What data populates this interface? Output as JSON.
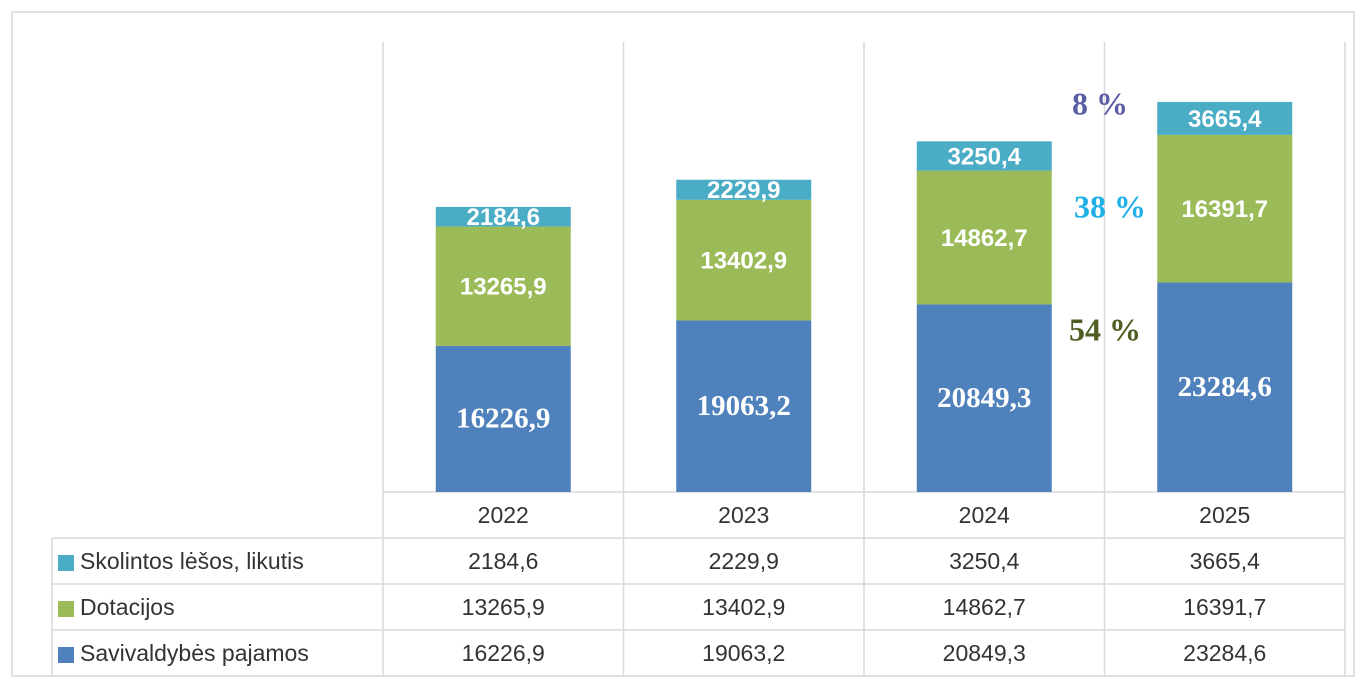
{
  "chart_data": {
    "type": "stacked_bar",
    "categories": [
      "2022",
      "2023",
      "2024",
      "2025"
    ],
    "series": [
      {
        "name": "Savivaldybės pajamos",
        "color": "#4f81bd",
        "values": [
          16226.9,
          19063.2,
          20849.3,
          23284.6
        ],
        "value_labels": [
          "16226,9",
          "19063,2",
          "20849,3",
          "23284,6"
        ]
      },
      {
        "name": "Dotacijos",
        "color": "#9bbb59",
        "values": [
          13265.9,
          13402.9,
          14862.7,
          16391.7
        ],
        "value_labels": [
          "13265,9",
          "13402,9",
          "14862,7",
          "16391,7"
        ]
      },
      {
        "name": "Skolintos lėšos, likutis",
        "color": "#4bacc6",
        "values": [
          2184.6,
          2229.9,
          3250.4,
          3665.4
        ],
        "value_labels": [
          "2184,6",
          "2229,9",
          "3250,4",
          "3665,4"
        ]
      }
    ],
    "ylim": [
      0,
      50000
    ],
    "annotations": [
      {
        "text": "8 %",
        "color": "#5b5ea6"
      },
      {
        "text": "38 %",
        "color": "#1fb0e6"
      },
      {
        "text": "54 %",
        "color": "#4f5f22"
      }
    ]
  }
}
